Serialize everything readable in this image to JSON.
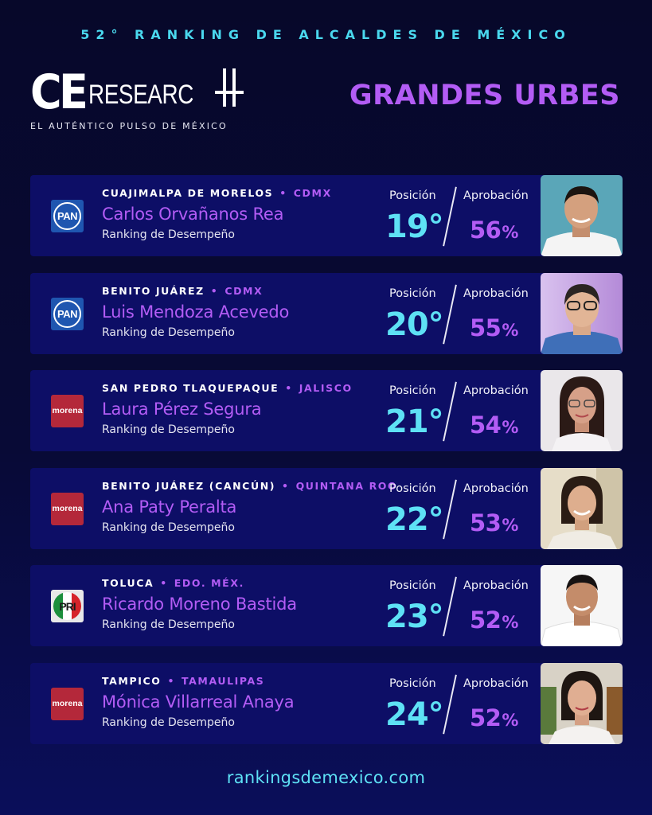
{
  "header": {
    "top_title": "52° RANKING DE ALCALDES DE MÉXICO",
    "logo_ce": "CE",
    "logo_research": "RESEARC",
    "logo_sub": "EL AUTÉNTICO PULSO DE MÉXICO",
    "section_title": "GRANDES URBES"
  },
  "labels": {
    "posicion": "Posición",
    "aprobacion": "Aprobación",
    "ranking": "Ranking de Desempeño",
    "separator": "•",
    "percent": "%"
  },
  "mayors": [
    {
      "municipio": "CUAJIMALPA DE MORELOS",
      "estado": "CDMX",
      "nombre": "Carlos Orvañanos Rea",
      "posicion": "19°",
      "aprobacion": "56",
      "partido": "PAN"
    },
    {
      "municipio": "BENITO JUÁREZ",
      "estado": "CDMX",
      "nombre": "Luis Mendoza Acevedo",
      "posicion": "20°",
      "aprobacion": "55",
      "partido": "PAN"
    },
    {
      "municipio": "SAN PEDRO TLAQUEPAQUE",
      "estado": "JALISCO",
      "nombre": "Laura Pérez Segura",
      "posicion": "21°",
      "aprobacion": "54",
      "partido": "morena"
    },
    {
      "municipio": "BENITO JUÁREZ (CANCÚN)",
      "estado": "QUINTANA ROO",
      "nombre": "Ana Paty Peralta",
      "posicion": "22°",
      "aprobacion": "53",
      "partido": "morena"
    },
    {
      "municipio": "TOLUCA",
      "estado": "EDO. MÉX.",
      "nombre": "Ricardo Moreno Bastida",
      "posicion": "23°",
      "aprobacion": "52",
      "partido": "PRI"
    },
    {
      "municipio": "TAMPICO",
      "estado": "TAMAULIPAS",
      "nombre": "Mónica Villarreal Anaya",
      "posicion": "24°",
      "aprobacion": "52",
      "partido": "morena"
    }
  ],
  "footer": {
    "url": "rankingsdemexico.com"
  },
  "colors": {
    "accent_cyan": "#5ee1f5",
    "accent_purple": "#b35cf5",
    "card_bg": "#0d0e66",
    "pan_blue": "#1f56b0",
    "morena_red": "#b4283a"
  }
}
